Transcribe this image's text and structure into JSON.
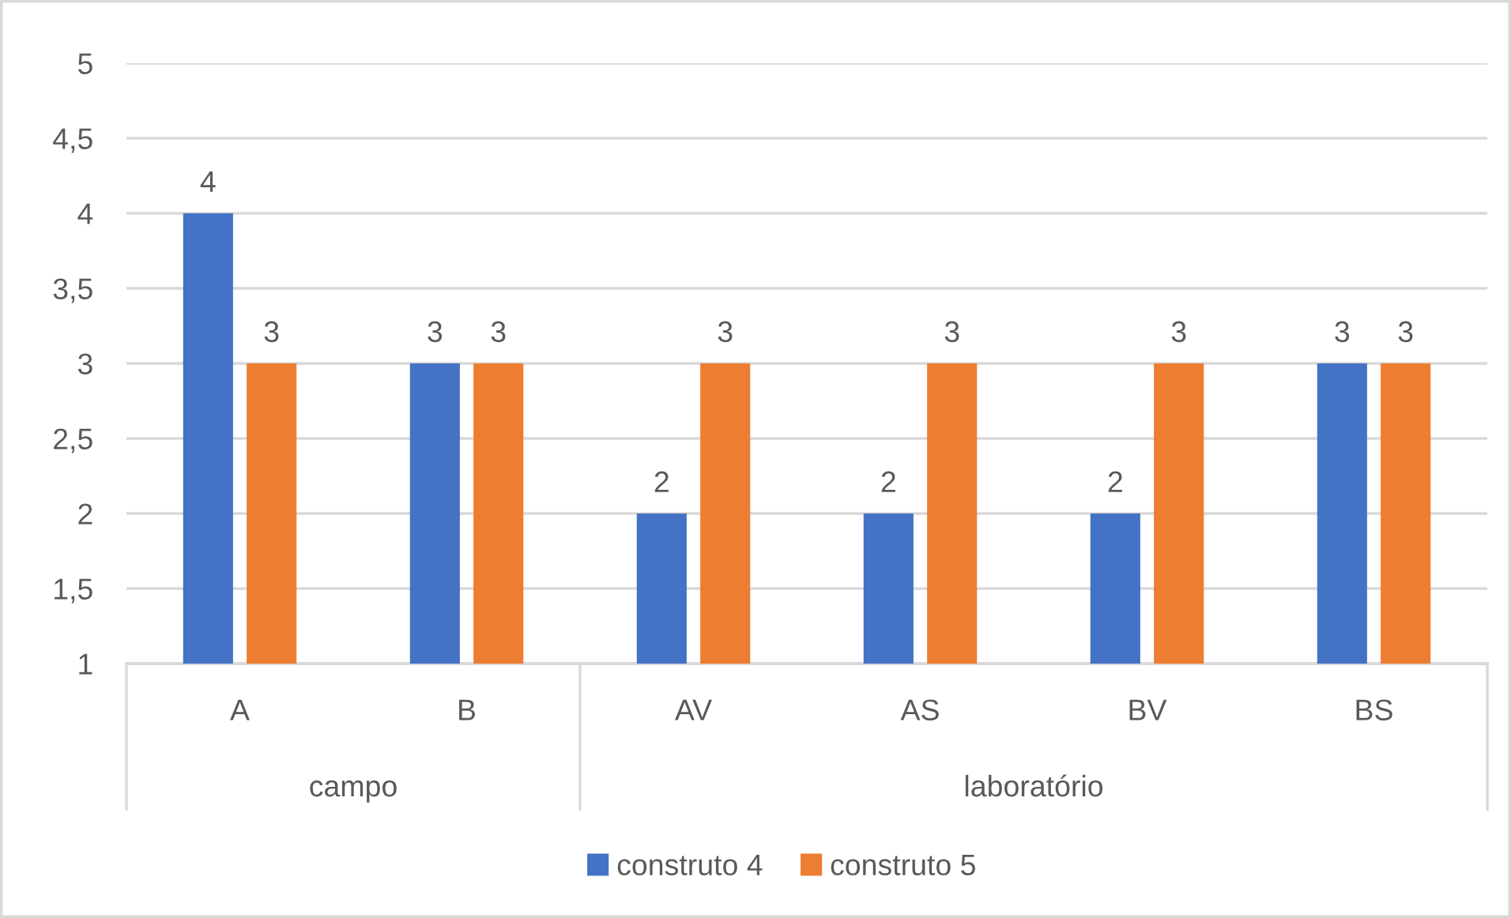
{
  "chart_data": {
    "type": "bar",
    "categories": [
      "A",
      "B",
      "AV",
      "AS",
      "BV",
      "BS"
    ],
    "series": [
      {
        "name": "construto 4",
        "color": "#4472c4",
        "values": [
          4,
          3,
          2,
          2,
          2,
          3
        ]
      },
      {
        "name": "construto 5",
        "color": "#ed7d31",
        "values": [
          3,
          3,
          3,
          3,
          3,
          3
        ]
      }
    ],
    "ylim": [
      1,
      5
    ],
    "yticks": [
      1,
      {
        "value": 1.5,
        "label": "1,5"
      },
      2,
      {
        "value": 2.5,
        "label": "2,5"
      },
      3,
      {
        "value": 3.5,
        "label": "3,5"
      },
      4,
      {
        "value": 4.5,
        "label": "4,5"
      },
      5
    ],
    "grid": "y",
    "legend": "bottom",
    "data_labels": true,
    "annotations": [
      "campo",
      "laboratório"
    ]
  }
}
